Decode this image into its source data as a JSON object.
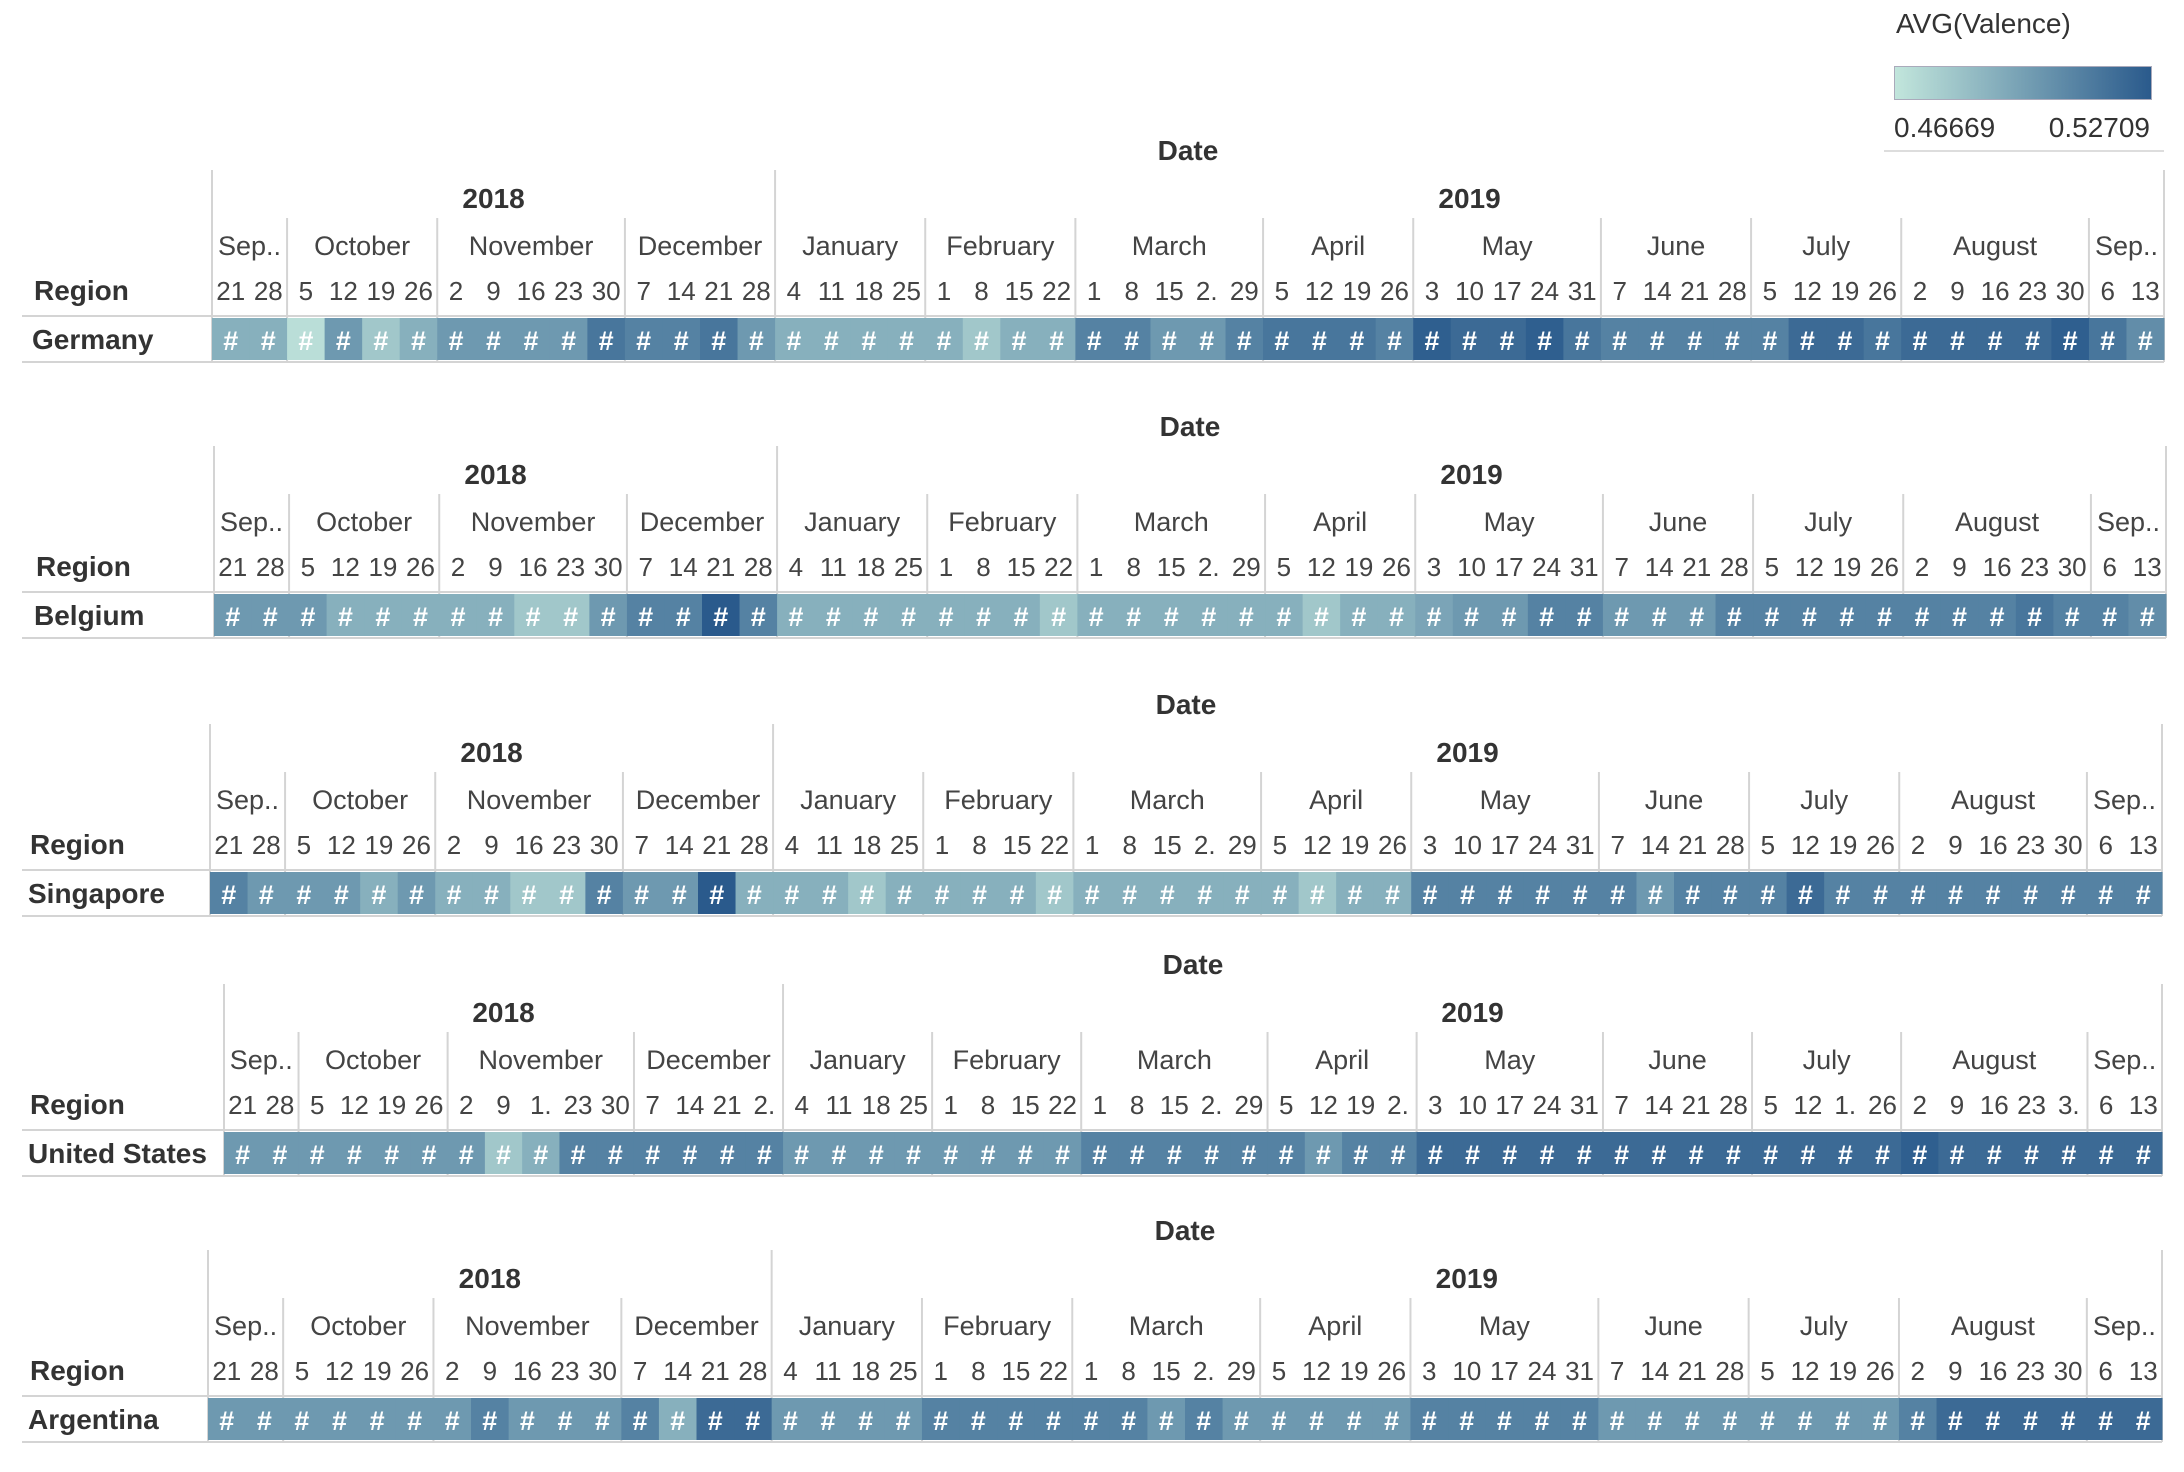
{
  "chart_data": {
    "type": "heatmap",
    "column_header": "Date",
    "row_header": "Region",
    "cell_label": "#",
    "legend": {
      "title": "AVG(Valence)",
      "min": 0.46669,
      "max": 0.52709,
      "min_label": "0.46669",
      "max_label": "0.52709",
      "color_low": "#c2e6dc",
      "color_high": "#2a5a8c"
    },
    "years": [
      {
        "label": "2018",
        "months": 4
      },
      {
        "label": "2019",
        "months": 9
      }
    ],
    "months": [
      {
        "label": "Sep..",
        "weeks": [
          "21",
          "28"
        ]
      },
      {
        "label": "October",
        "weeks": [
          "5",
          "12",
          "19",
          "26"
        ]
      },
      {
        "label": "November",
        "weeks": [
          "2",
          "9",
          "16",
          "23",
          "30"
        ]
      },
      {
        "label": "December",
        "weeks": [
          "7",
          "14",
          "21",
          "28"
        ]
      },
      {
        "label": "January",
        "weeks": [
          "4",
          "11",
          "18",
          "25"
        ]
      },
      {
        "label": "February",
        "weeks": [
          "1",
          "8",
          "15",
          "22"
        ]
      },
      {
        "label": "March",
        "weeks": [
          "1",
          "8",
          "15",
          "2.",
          "29"
        ]
      },
      {
        "label": "April",
        "weeks": [
          "5",
          "12",
          "19",
          "26"
        ]
      },
      {
        "label": "May",
        "weeks": [
          "3",
          "10",
          "17",
          "24",
          "31"
        ]
      },
      {
        "label": "June",
        "weeks": [
          "7",
          "14",
          "21",
          "28"
        ]
      },
      {
        "label": "July",
        "weeks": [
          "5",
          "12",
          "19",
          "26"
        ]
      },
      {
        "label": "August",
        "weeks": [
          "2",
          "9",
          "16",
          "23",
          "30"
        ]
      },
      {
        "label": "Sep..",
        "weeks": [
          "6",
          "13"
        ]
      }
    ],
    "panels": [
      {
        "region": "Germany",
        "values": [
          0.49,
          0.49,
          0.47,
          0.5,
          0.48,
          0.49,
          0.5,
          0.5,
          0.5,
          0.5,
          0.515,
          0.51,
          0.51,
          0.515,
          0.5,
          0.49,
          0.49,
          0.49,
          0.49,
          0.49,
          0.48,
          0.49,
          0.49,
          0.51,
          0.51,
          0.5,
          0.5,
          0.51,
          0.515,
          0.515,
          0.515,
          0.51,
          0.525,
          0.52,
          0.52,
          0.525,
          0.515,
          0.51,
          0.51,
          0.51,
          0.51,
          0.51,
          0.52,
          0.52,
          0.515,
          0.52,
          0.52,
          0.52,
          0.52,
          0.525,
          0.515,
          0.505,
          0.505
        ]
      },
      {
        "region": "Belgium",
        "values": [
          0.5,
          0.5,
          0.5,
          0.49,
          0.49,
          0.49,
          0.49,
          0.49,
          0.48,
          0.48,
          0.5,
          0.51,
          0.51,
          0.527,
          0.51,
          0.49,
          0.49,
          0.49,
          0.49,
          0.49,
          0.49,
          0.49,
          0.48,
          0.49,
          0.49,
          0.49,
          0.49,
          0.49,
          0.49,
          0.48,
          0.49,
          0.49,
          0.495,
          0.5,
          0.5,
          0.51,
          0.51,
          0.5,
          0.5,
          0.5,
          0.51,
          0.51,
          0.51,
          0.51,
          0.51,
          0.51,
          0.51,
          0.51,
          0.515,
          0.51,
          0.51,
          0.505,
          0.51
        ]
      },
      {
        "region": "Singapore",
        "values": [
          0.51,
          0.5,
          0.5,
          0.5,
          0.49,
          0.5,
          0.49,
          0.49,
          0.48,
          0.48,
          0.51,
          0.5,
          0.5,
          0.527,
          0.49,
          0.49,
          0.49,
          0.48,
          0.49,
          0.49,
          0.49,
          0.49,
          0.48,
          0.49,
          0.49,
          0.49,
          0.49,
          0.49,
          0.49,
          0.48,
          0.49,
          0.49,
          0.51,
          0.51,
          0.51,
          0.51,
          0.51,
          0.51,
          0.5,
          0.51,
          0.51,
          0.51,
          0.52,
          0.51,
          0.51,
          0.51,
          0.51,
          0.51,
          0.51,
          0.51,
          0.51,
          0.51,
          0.51
        ]
      },
      {
        "region": "United States",
        "months": [
          {
            "label": "Sep..",
            "weeks": [
              "21",
              "28"
            ]
          },
          {
            "label": "October",
            "weeks": [
              "5",
              "12",
              "19",
              "26"
            ]
          },
          {
            "label": "November",
            "weeks": [
              "2",
              "9",
              "1.",
              "23",
              "30"
            ]
          },
          {
            "label": "December",
            "weeks": [
              "7",
              "14",
              "21",
              "2."
            ]
          },
          {
            "label": "January",
            "weeks": [
              "4",
              "11",
              "18",
              "25"
            ]
          },
          {
            "label": "February",
            "weeks": [
              "1",
              "8",
              "15",
              "22"
            ]
          },
          {
            "label": "March",
            "weeks": [
              "1",
              "8",
              "15",
              "2.",
              "29"
            ]
          },
          {
            "label": "April",
            "weeks": [
              "5",
              "12",
              "19",
              "2."
            ]
          },
          {
            "label": "May",
            "weeks": [
              "3",
              "10",
              "17",
              "24",
              "31"
            ]
          },
          {
            "label": "June",
            "weeks": [
              "7",
              "14",
              "21",
              "28"
            ]
          },
          {
            "label": "July",
            "weeks": [
              "5",
              "12",
              "1.",
              "26"
            ]
          },
          {
            "label": "August",
            "weeks": [
              "2",
              "9",
              "16",
              "23",
              "3."
            ]
          },
          {
            "label": "Sep..",
            "weeks": [
              "6",
              "13"
            ]
          }
        ],
        "values": [
          0.5,
          0.5,
          0.5,
          0.5,
          0.5,
          0.5,
          0.5,
          0.48,
          0.49,
          0.51,
          0.51,
          0.51,
          0.51,
          0.51,
          0.51,
          0.5,
          0.5,
          0.5,
          0.5,
          0.5,
          0.5,
          0.5,
          0.5,
          0.51,
          0.51,
          0.51,
          0.51,
          0.51,
          0.51,
          0.5,
          0.51,
          0.51,
          0.52,
          0.52,
          0.52,
          0.52,
          0.52,
          0.52,
          0.52,
          0.52,
          0.52,
          0.52,
          0.52,
          0.52,
          0.52,
          0.525,
          0.52,
          0.52,
          0.52,
          0.52,
          0.52,
          0.52,
          0.52
        ]
      },
      {
        "region": "Argentina",
        "values": [
          0.5,
          0.5,
          0.5,
          0.5,
          0.5,
          0.5,
          0.5,
          0.51,
          0.5,
          0.5,
          0.5,
          0.51,
          0.49,
          0.52,
          0.52,
          0.5,
          0.5,
          0.5,
          0.5,
          0.51,
          0.51,
          0.51,
          0.51,
          0.51,
          0.51,
          0.5,
          0.51,
          0.5,
          0.5,
          0.5,
          0.5,
          0.5,
          0.51,
          0.51,
          0.51,
          0.51,
          0.51,
          0.5,
          0.5,
          0.5,
          0.5,
          0.5,
          0.5,
          0.5,
          0.5,
          0.51,
          0.52,
          0.52,
          0.52,
          0.52,
          0.52,
          0.52,
          0.52
        ]
      }
    ]
  }
}
